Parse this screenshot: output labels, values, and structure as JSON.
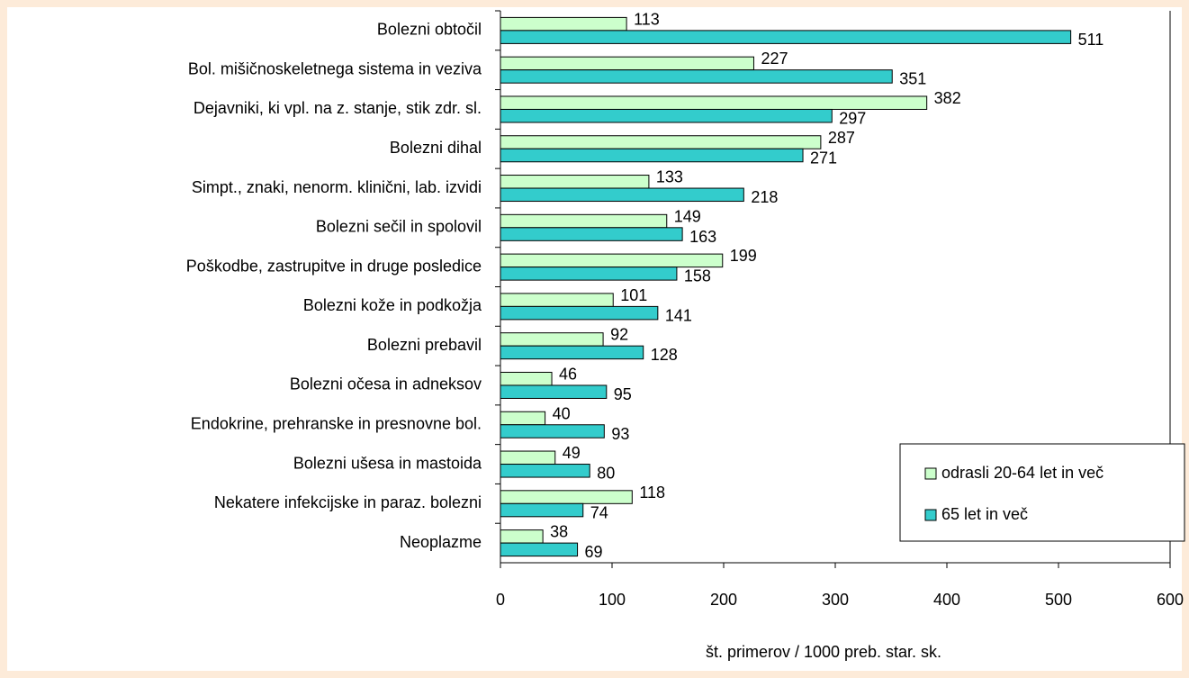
{
  "chart_data": {
    "type": "bar",
    "orientation": "horizontal",
    "categories": [
      "Bolezni obtočil",
      "Bol. mišičnoskeletnega sistema in veziva",
      "Dejavniki, ki vpl. na z. stanje, stik zdr. sl.",
      "Bolezni dihal",
      "Simpt., znaki, nenorm. klinični, lab. izvidi",
      "Bolezni sečil in spolovil",
      "Poškodbe, zastrupitve in druge posledice",
      "Bolezni kože in podkožja",
      "Bolezni prebavil",
      "Bolezni očesa in adneksov",
      "Endokrine, prehranske in presnovne bol.",
      "Bolezni ušesa in mastoida",
      "Nekatere infekcijske in paraz. bolezni",
      "Neoplazme"
    ],
    "series": [
      {
        "name": "odrasli 20-64 let in več",
        "color": "#ccffcc",
        "values": [
          113,
          227,
          382,
          287,
          133,
          149,
          199,
          101,
          92,
          46,
          40,
          49,
          118,
          38
        ]
      },
      {
        "name": "65 let in več",
        "color": "#33cccc",
        "values": [
          511,
          351,
          297,
          271,
          218,
          163,
          158,
          141,
          128,
          95,
          93,
          80,
          74,
          69
        ]
      }
    ],
    "xlim": [
      0,
      600
    ],
    "xticks": [
      0,
      100,
      200,
      300,
      400,
      500,
      600
    ],
    "xlabel": "št. primerov / 1000 preb. star. sk.",
    "legend": "lower right"
  }
}
